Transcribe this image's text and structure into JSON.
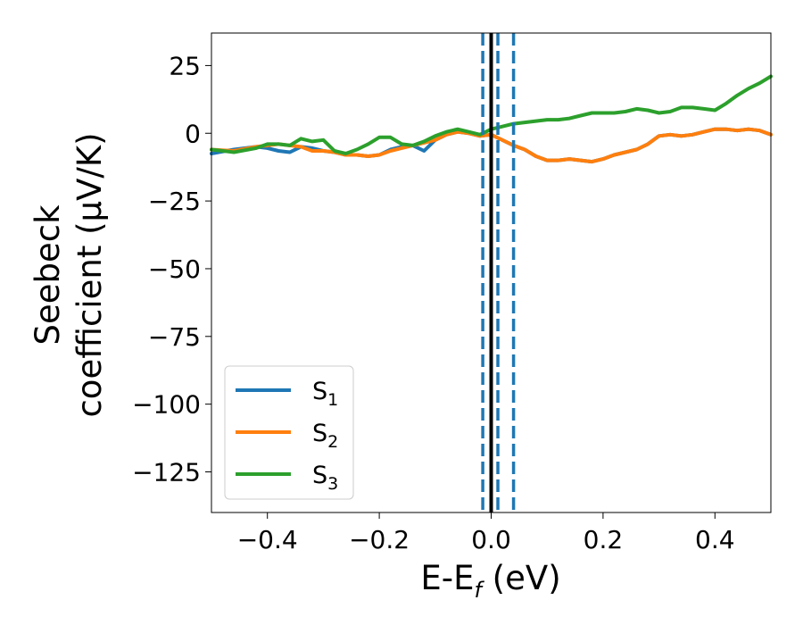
{
  "chart_data": {
    "type": "line",
    "title": "",
    "xlabel": {
      "main": "E-E",
      "sub": "f",
      "suffix": " (eV)"
    },
    "ylabel": {
      "line1": "Seebeck",
      "line2": "coefficient  (μV/K)"
    },
    "xlim": [
      -0.5,
      0.5
    ],
    "ylim": [
      -140,
      37
    ],
    "x_ticks": [
      -0.4,
      -0.2,
      0.0,
      0.2,
      0.4
    ],
    "x_tick_labels": [
      "−0.4",
      "−0.2",
      "0.0",
      "0.2",
      "0.4"
    ],
    "y_ticks": [
      25,
      0,
      -25,
      -50,
      -75,
      -100,
      -125
    ],
    "y_tick_labels": [
      "25",
      "0",
      "−25",
      "−50",
      "−75",
      "−100",
      "−125"
    ],
    "grid": false,
    "legend_position": "lower-left",
    "vertical_lines": [
      {
        "x": 0.0,
        "style": "solid",
        "color": "#000000"
      },
      {
        "x": -0.015,
        "style": "dashed",
        "color": "#1f77b4"
      },
      {
        "x": 0.012,
        "style": "dashed",
        "color": "#1f77b4"
      },
      {
        "x": 0.04,
        "style": "dashed",
        "color": "#1f77b4"
      }
    ],
    "series": [
      {
        "name": "S",
        "sub": "1",
        "color": "#1f77b4",
        "x": [
          -0.5,
          -0.46,
          -0.42,
          -0.4,
          -0.38,
          -0.36,
          -0.34,
          -0.32,
          -0.3,
          -0.28,
          -0.26,
          -0.24,
          -0.22,
          -0.2,
          -0.18,
          -0.16,
          -0.14,
          -0.12,
          -0.1,
          -0.08,
          -0.06,
          -0.04,
          -0.02,
          0.0,
          0.02,
          0.04,
          0.06,
          0.08,
          0.1,
          0.12,
          0.14,
          0.16,
          0.18,
          0.2,
          0.22,
          0.24,
          0.26,
          0.28,
          0.3,
          0.32,
          0.34,
          0.36,
          0.38,
          0.4,
          0.42,
          0.44,
          0.46,
          0.48,
          0.5
        ],
        "y": [
          -7.5,
          -6,
          -5,
          -5.5,
          -6.5,
          -7,
          -5,
          -5.5,
          -6.5,
          -7,
          -8,
          -8,
          -8.5,
          -8,
          -6,
          -5,
          -4.5,
          -6.5,
          -2.5,
          -0.5,
          0.5,
          0,
          -1,
          -0.5,
          -2.5,
          -4.5,
          -6,
          -8.5,
          -10,
          -10,
          -9.5,
          -10,
          -10.5,
          -9.5,
          -8,
          -7,
          -6,
          -4,
          -1,
          -0.5,
          -1,
          -0.5,
          0.5,
          1.5,
          1.5,
          1,
          1.5,
          1,
          -0.5
        ]
      },
      {
        "name": "S",
        "sub": "2",
        "color": "#ff7f0e",
        "x": [
          -0.5,
          -0.46,
          -0.42,
          -0.4,
          -0.38,
          -0.36,
          -0.34,
          -0.32,
          -0.3,
          -0.28,
          -0.26,
          -0.24,
          -0.22,
          -0.2,
          -0.18,
          -0.16,
          -0.14,
          -0.12,
          -0.1,
          -0.08,
          -0.06,
          -0.04,
          -0.02,
          0.0,
          0.02,
          0.04,
          0.06,
          0.08,
          0.1,
          0.12,
          0.14,
          0.16,
          0.18,
          0.2,
          0.22,
          0.24,
          0.26,
          0.28,
          0.3,
          0.32,
          0.34,
          0.36,
          0.38,
          0.4,
          0.42,
          0.44,
          0.46,
          0.48,
          0.5
        ],
        "y": [
          -6,
          -6.5,
          -5,
          -4.5,
          -4,
          -4.5,
          -5,
          -6.5,
          -6.5,
          -7,
          -8,
          -8,
          -8.5,
          -8,
          -6.5,
          -5.5,
          -4.5,
          -3.5,
          -2.5,
          -0.5,
          0.5,
          0,
          -1,
          -0.5,
          -2.5,
          -4.5,
          -6,
          -8.5,
          -10,
          -10,
          -9.5,
          -10,
          -10.5,
          -9.5,
          -8,
          -7,
          -6,
          -4,
          -1,
          -0.5,
          -1,
          -0.5,
          0.5,
          1.5,
          1.5,
          1,
          1.5,
          1,
          -0.5
        ]
      },
      {
        "name": "S",
        "sub": "3",
        "color": "#2ca02c",
        "x": [
          -0.5,
          -0.46,
          -0.42,
          -0.4,
          -0.38,
          -0.36,
          -0.34,
          -0.32,
          -0.3,
          -0.28,
          -0.26,
          -0.24,
          -0.22,
          -0.2,
          -0.18,
          -0.16,
          -0.14,
          -0.12,
          -0.1,
          -0.08,
          -0.06,
          -0.04,
          -0.02,
          0.0,
          0.02,
          0.04,
          0.06,
          0.08,
          0.1,
          0.12,
          0.14,
          0.16,
          0.18,
          0.2,
          0.22,
          0.24,
          0.26,
          0.28,
          0.3,
          0.32,
          0.34,
          0.36,
          0.38,
          0.4,
          0.42,
          0.44,
          0.46,
          0.48,
          0.5
        ],
        "y": [
          -6,
          -7,
          -5.5,
          -4,
          -4,
          -4.5,
          -2,
          -3,
          -2.5,
          -6.5,
          -7.5,
          -6,
          -4,
          -1.5,
          -1.5,
          -4,
          -4.5,
          -3,
          -1,
          0.5,
          1.5,
          0.5,
          -0.5,
          1.5,
          2.5,
          3.5,
          4,
          4.5,
          5,
          5,
          5.5,
          6.5,
          7.5,
          7.5,
          7.5,
          8,
          9,
          8.5,
          7.5,
          8,
          9.5,
          9.5,
          9,
          8.5,
          11,
          14,
          16.5,
          18.5,
          21
        ]
      }
    ]
  }
}
